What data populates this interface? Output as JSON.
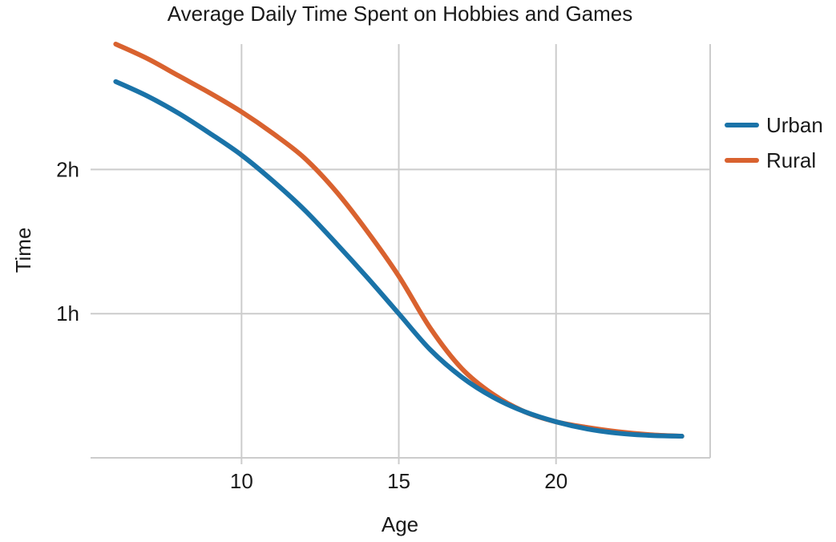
{
  "chart_data": {
    "type": "line",
    "title": "Average Daily Time Spent on Hobbies and Games",
    "xlabel": "Age",
    "ylabel": "Time",
    "xlim": [
      5.2,
      24.9
    ],
    "ylim": [
      0,
      2.87
    ],
    "x_ticks": [
      10,
      15,
      20
    ],
    "x_tick_labels": [
      "10",
      "15",
      "20"
    ],
    "y_ticks": [
      1,
      2
    ],
    "y_tick_labels": [
      "1h",
      "2h"
    ],
    "grid": true,
    "legend_position": "right",
    "series": [
      {
        "name": "Urban",
        "color": "#1a73a8",
        "points": [
          [
            6,
            2.61
          ],
          [
            7,
            2.51
          ],
          [
            8,
            2.39
          ],
          [
            9,
            2.25
          ],
          [
            10,
            2.1
          ],
          [
            11,
            1.92
          ],
          [
            12,
            1.72
          ],
          [
            13,
            1.49
          ],
          [
            14,
            1.25
          ],
          [
            15,
            1.0
          ],
          [
            16,
            0.75
          ],
          [
            17,
            0.56
          ],
          [
            18,
            0.42
          ],
          [
            19,
            0.32
          ],
          [
            20,
            0.25
          ],
          [
            21,
            0.2
          ],
          [
            22,
            0.17
          ],
          [
            23,
            0.155
          ],
          [
            24,
            0.15
          ]
        ]
      },
      {
        "name": "Rural",
        "color": "#d9622f",
        "points": [
          [
            6,
            2.87
          ],
          [
            7,
            2.77
          ],
          [
            8,
            2.65
          ],
          [
            9,
            2.53
          ],
          [
            10,
            2.4
          ],
          [
            11,
            2.25
          ],
          [
            12,
            2.08
          ],
          [
            13,
            1.85
          ],
          [
            14,
            1.57
          ],
          [
            15,
            1.26
          ],
          [
            16,
            0.9
          ],
          [
            17,
            0.62
          ],
          [
            18,
            0.44
          ],
          [
            19,
            0.32
          ],
          [
            20,
            0.25
          ],
          [
            21,
            0.21
          ],
          [
            22,
            0.18
          ],
          [
            23,
            0.16
          ],
          [
            24,
            0.15
          ]
        ]
      }
    ]
  }
}
